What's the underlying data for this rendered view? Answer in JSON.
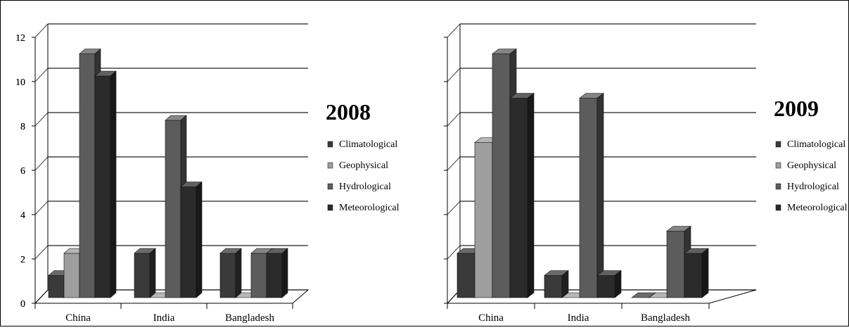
{
  "chart_data": [
    {
      "type": "bar",
      "title": "2008",
      "categories": [
        "China",
        "India",
        "Bangladesh"
      ],
      "series": [
        {
          "name": "Climatological",
          "values": [
            1,
            2,
            2
          ]
        },
        {
          "name": "Geophysical",
          "values": [
            2,
            0,
            0
          ]
        },
        {
          "name": "Hydrological",
          "values": [
            11,
            8,
            2
          ]
        },
        {
          "name": "Meteorological",
          "values": [
            10,
            5,
            2
          ]
        }
      ],
      "yticks": [
        "0",
        "2",
        "4",
        "6",
        "8",
        "10",
        "12"
      ],
      "ylim": [
        0,
        12
      ],
      "grid": true,
      "legend": "right"
    },
    {
      "type": "bar",
      "title": "2009",
      "categories": [
        "China",
        "India",
        "Bangladesh"
      ],
      "series": [
        {
          "name": "Climatological",
          "values": [
            2,
            1,
            0
          ]
        },
        {
          "name": "Geophysical",
          "values": [
            7,
            0,
            0
          ]
        },
        {
          "name": "Hydrological",
          "values": [
            11,
            9,
            3
          ]
        },
        {
          "name": "Meteorological",
          "values": [
            9,
            1,
            2
          ]
        }
      ],
      "yticks": [
        "0",
        "2",
        "4",
        "6",
        "8",
        "10",
        "12"
      ],
      "ylim": [
        0,
        12
      ],
      "grid": true,
      "legend": "right"
    }
  ],
  "colors": {
    "Climatological": "#3a3a3a",
    "Geophysical": "#9e9e9e",
    "Hydrological": "#5c5c5c",
    "Meteorological": "#2b2b2b",
    "frame": "#000000",
    "grid": "#222222"
  }
}
